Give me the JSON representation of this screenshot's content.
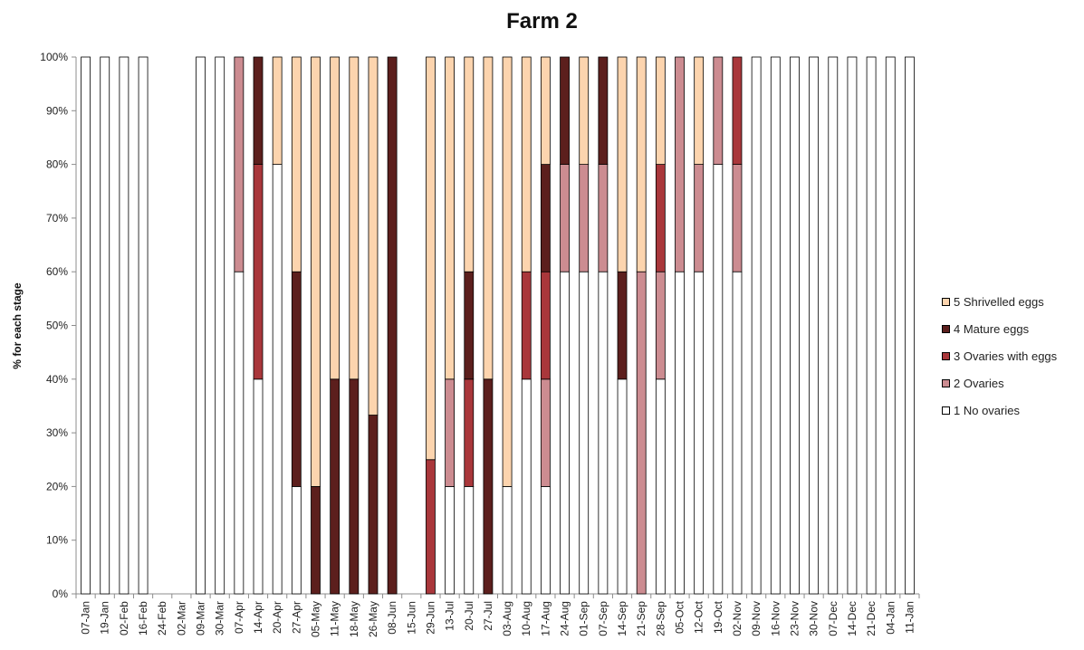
{
  "chart_data": {
    "type": "bar",
    "stacked": true,
    "title": "Farm 2",
    "xlabel": "",
    "ylabel": "% for each stage",
    "ylim": [
      0,
      100
    ],
    "yticks": [
      "0%",
      "10%",
      "20%",
      "30%",
      "40%",
      "50%",
      "60%",
      "70%",
      "80%",
      "90%",
      "100%"
    ],
    "categories": [
      "07-Jan",
      "19-Jan",
      "02-Feb",
      "16-Feb",
      "24-Feb",
      "02-Mar",
      "09-Mar",
      "30-Mar",
      "07-Apr",
      "14-Apr",
      "20-Apr",
      "27-Apr",
      "05-May",
      "11-May",
      "18-May",
      "26-May",
      "08-Jun",
      "15-Jun",
      "29-Jun",
      "13-Jul",
      "20-Jul",
      "27-Jul",
      "03-Aug",
      "10-Aug",
      "17-Aug",
      "24-Aug",
      "01-Sep",
      "07-Sep",
      "14-Sep",
      "21-Sep",
      "28-Sep",
      "05-Oct",
      "12-Oct",
      "19-Oct",
      "02-Nov",
      "09-Nov",
      "16-Nov",
      "23-Nov",
      "30-Nov",
      "07-Dec",
      "14-Dec",
      "21-Dec",
      "04-Jan",
      "11-Jan"
    ],
    "series": [
      {
        "name": "1 No ovaries",
        "color": "#ffffff",
        "values": [
          100,
          100,
          100,
          100,
          0,
          0,
          100,
          100,
          60,
          40,
          80,
          20,
          0,
          0,
          0,
          0,
          0,
          0,
          0,
          20,
          20,
          0,
          20,
          40,
          20,
          60,
          60,
          60,
          40,
          0,
          40,
          60,
          60,
          80,
          60,
          100,
          100,
          100,
          100,
          100,
          100,
          100,
          100,
          100
        ]
      },
      {
        "name": "2 Ovaries",
        "color": "#cc8c91",
        "values": [
          0,
          0,
          0,
          0,
          0,
          0,
          0,
          0,
          40,
          0,
          0,
          0,
          0,
          0,
          0,
          0,
          0,
          0,
          0,
          20,
          0,
          0,
          0,
          0,
          20,
          20,
          20,
          20,
          0,
          60,
          20,
          40,
          20,
          20,
          20,
          0,
          0,
          0,
          0,
          0,
          0,
          0,
          0,
          0
        ]
      },
      {
        "name": "3 Ovaries with eggs",
        "color": "#a9373b",
        "values": [
          0,
          0,
          0,
          0,
          0,
          0,
          0,
          0,
          0,
          40,
          0,
          0,
          0,
          0,
          0,
          0,
          0,
          0,
          25,
          0,
          20,
          0,
          0,
          20,
          20,
          0,
          0,
          0,
          0,
          0,
          20,
          0,
          0,
          0,
          20,
          0,
          0,
          0,
          0,
          0,
          0,
          0,
          0,
          0
        ]
      },
      {
        "name": "4 Mature eggs",
        "color": "#5c1f1d",
        "values": [
          0,
          0,
          0,
          0,
          0,
          0,
          0,
          0,
          0,
          20,
          0,
          40,
          20,
          40,
          40,
          33.3,
          100,
          0,
          0,
          0,
          20,
          40,
          0,
          0,
          20,
          20,
          0,
          20,
          20,
          0,
          0,
          0,
          0,
          0,
          0,
          0,
          0,
          0,
          0,
          0,
          0,
          0,
          0,
          0
        ]
      },
      {
        "name": "5 Shrivelled eggs",
        "color": "#fcd4ae",
        "values": [
          0,
          0,
          0,
          0,
          0,
          0,
          0,
          0,
          0,
          0,
          20,
          40,
          80,
          60,
          60,
          66.7,
          0,
          0,
          75,
          60,
          40,
          60,
          80,
          40,
          20,
          0,
          20,
          0,
          40,
          40,
          20,
          0,
          20,
          0,
          0,
          0,
          0,
          0,
          0,
          0,
          0,
          0,
          0,
          0
        ]
      }
    ],
    "legend_position": "right",
    "grid": false
  }
}
